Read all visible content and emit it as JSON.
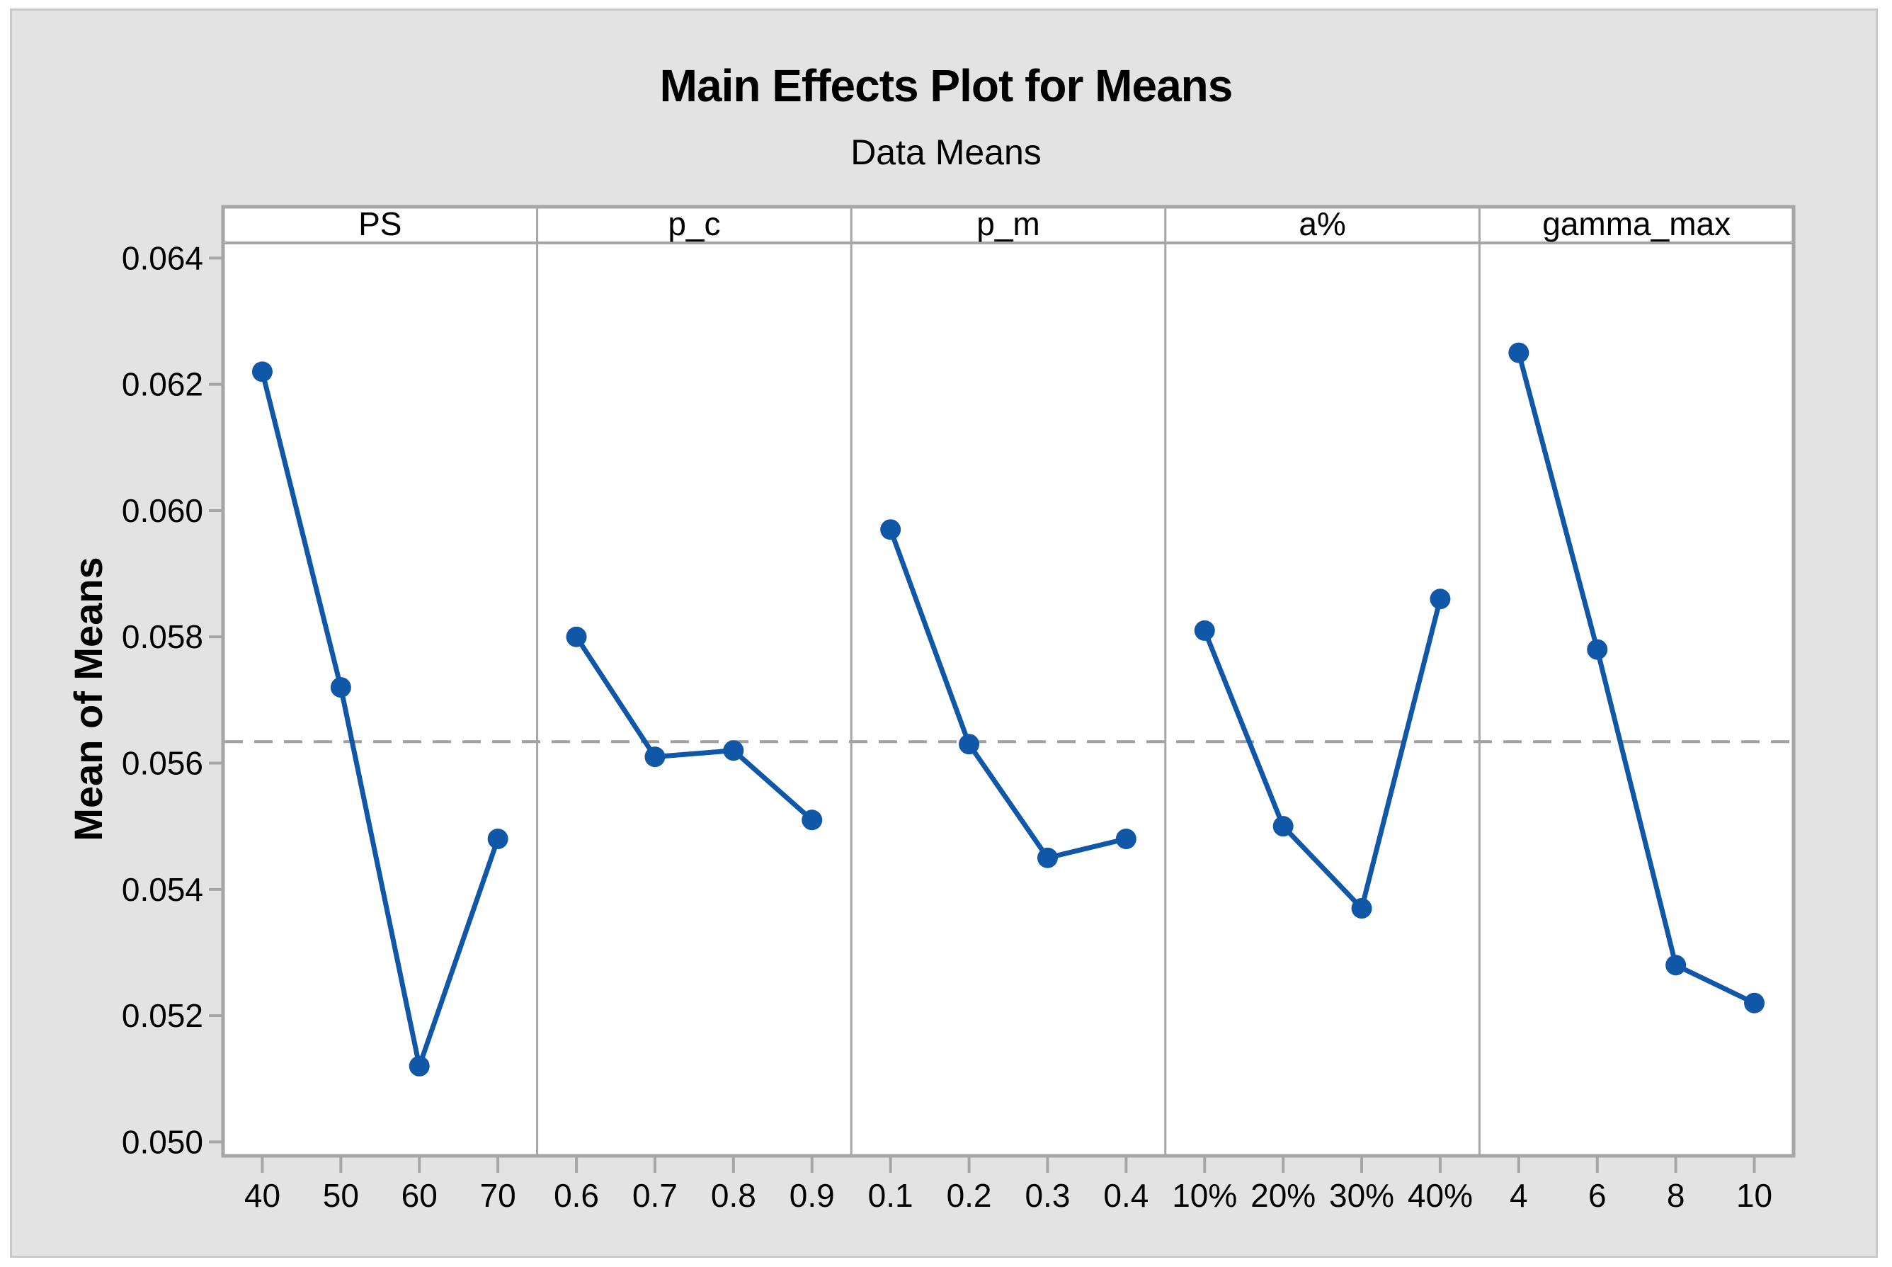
{
  "figure": {
    "title": "Main Effects Plot for Means",
    "subtitle": "Data Means",
    "y_axis_label": "Mean of Means"
  },
  "colors": {
    "series_blue": "#1057A8",
    "frame_gray": "#A6A6A6",
    "tick_gray": "#A6A6A6",
    "reference_gray": "#A0A0A0",
    "figure_background": "#E3E3E3",
    "panel_background": "#FFFFFF",
    "figure_border": "#C9C9C9",
    "text": "#000000"
  },
  "chart_data": {
    "type": "line",
    "title": "Main Effects Plot for Means",
    "subtitle": "Data Means",
    "xlabel": "",
    "ylabel": "Mean of Means",
    "ylim": [
      0.04978,
      0.06424
    ],
    "yticks": [
      0.05,
      0.052,
      0.054,
      0.056,
      0.058,
      0.06,
      0.062,
      0.064
    ],
    "ytick_labels": [
      "0.050",
      "0.052",
      "0.054",
      "0.056",
      "0.058",
      "0.060",
      "0.062",
      "0.064"
    ],
    "reference_line_mean": 0.05634,
    "grid": false,
    "legend_position": "none",
    "marker": "filled-circle",
    "panels": [
      {
        "factor": "PS",
        "categories": [
          "40",
          "50",
          "60",
          "70"
        ],
        "values": [
          0.0622,
          0.0572,
          0.0512,
          0.0548
        ]
      },
      {
        "factor": "p_c",
        "categories": [
          "0.6",
          "0.7",
          "0.8",
          "0.9"
        ],
        "values": [
          0.058,
          0.0561,
          0.0562,
          0.0551
        ]
      },
      {
        "factor": "p_m",
        "categories": [
          "0.1",
          "0.2",
          "0.3",
          "0.4"
        ],
        "values": [
          0.0597,
          0.0563,
          0.0545,
          0.0548
        ]
      },
      {
        "factor": "a%",
        "categories": [
          "10%",
          "20%",
          "30%",
          "40%"
        ],
        "values": [
          0.0581,
          0.055,
          0.0537,
          0.0586
        ]
      },
      {
        "factor": "gamma_max",
        "categories": [
          "4",
          "6",
          "8",
          "10"
        ],
        "values": [
          0.0625,
          0.0578,
          0.0528,
          0.0522
        ]
      }
    ]
  }
}
